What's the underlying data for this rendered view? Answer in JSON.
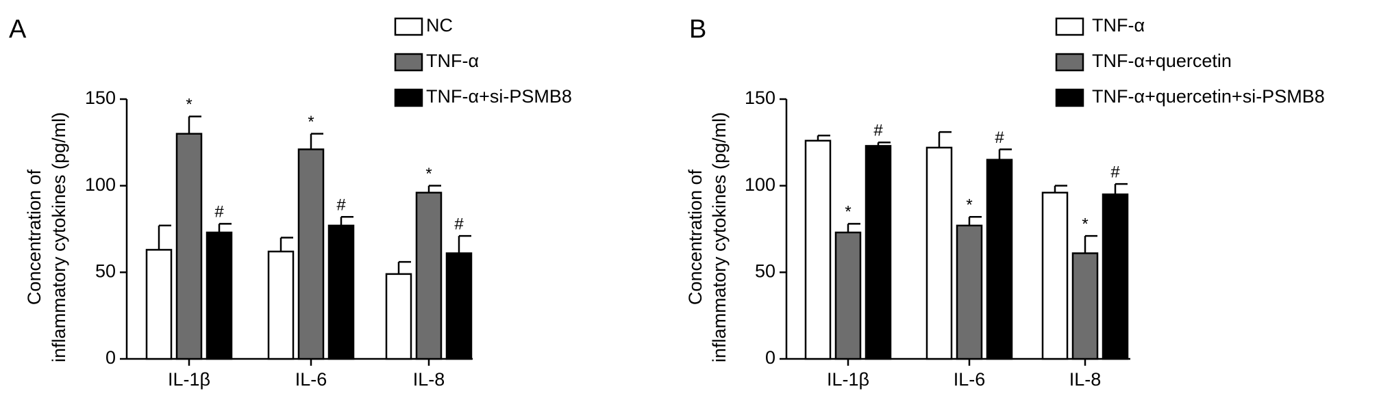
{
  "chart_data": [
    {
      "type": "bar",
      "panel_label": "A",
      "ylabel": [
        "Concentration of",
        "inflammatory cytokines (pg/ml)"
      ],
      "categories": [
        "IL-1β",
        "IL-6",
        "IL-8"
      ],
      "ylim": [
        0,
        150
      ],
      "yticks": [
        0,
        50,
        100,
        150
      ],
      "series": [
        {
          "name": "NC",
          "color": "#ffffff",
          "values": [
            63,
            62,
            49
          ],
          "errors": [
            14,
            8,
            7
          ]
        },
        {
          "name": "TNF-α",
          "color": "#6e6e6e",
          "values": [
            130,
            121,
            96
          ],
          "errors": [
            10,
            9,
            4
          ],
          "annotations": [
            "*",
            "*",
            "*"
          ]
        },
        {
          "name": "TNF-α+si-PSMB8",
          "color": "#000000",
          "values": [
            73,
            77,
            61
          ],
          "errors": [
            5,
            5,
            10
          ],
          "annotations": [
            "#",
            "#",
            "#"
          ]
        }
      ]
    },
    {
      "type": "bar",
      "panel_label": "B",
      "ylabel": [
        "Concentration of",
        "inflammatory cytokines (pg/ml)"
      ],
      "categories": [
        "IL-1β",
        "IL-6",
        "IL-8"
      ],
      "ylim": [
        0,
        150
      ],
      "yticks": [
        0,
        50,
        100,
        150
      ],
      "series": [
        {
          "name": "TNF-α",
          "color": "#ffffff",
          "values": [
            126,
            122,
            96
          ],
          "errors": [
            3,
            9,
            4
          ]
        },
        {
          "name": "TNF-α+quercetin",
          "color": "#6e6e6e",
          "values": [
            73,
            77,
            61
          ],
          "errors": [
            5,
            5,
            10
          ],
          "annotations": [
            "*",
            "*",
            "*"
          ]
        },
        {
          "name": "TNF-α+quercetin+si-PSMB8",
          "color": "#000000",
          "values": [
            123,
            115,
            95
          ],
          "errors": [
            2,
            6,
            6
          ],
          "annotations": [
            "#",
            "#",
            "#"
          ]
        }
      ]
    }
  ]
}
